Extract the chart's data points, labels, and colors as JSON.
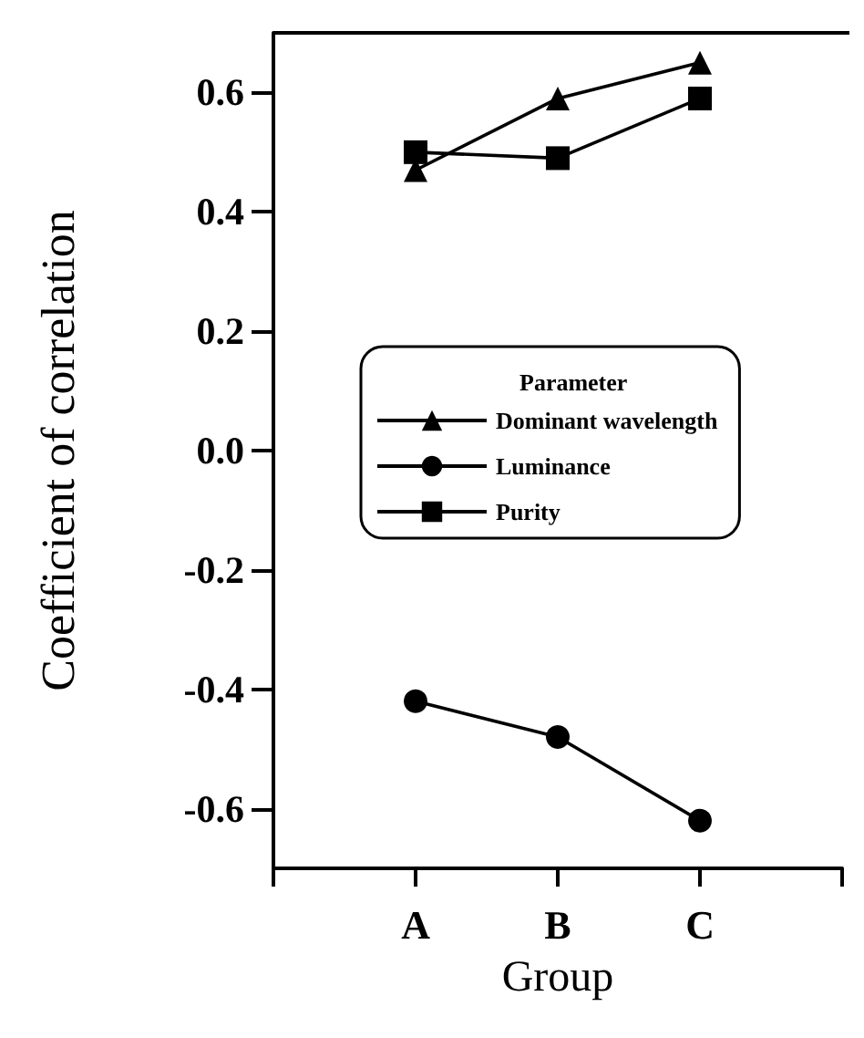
{
  "chart_data": {
    "type": "line",
    "xlabel": "Group",
    "ylabel": "Coefficient of correlation",
    "legend_title": "Parameter",
    "legend": "center",
    "grid": false,
    "categories": [
      "A",
      "B",
      "C"
    ],
    "ylim": [
      -0.7,
      0.7
    ],
    "yticks": [
      -0.6,
      -0.4,
      -0.2,
      {
        "value": 0,
        "label": "0.0"
      },
      0.2,
      0.4,
      0.6
    ],
    "series": [
      {
        "name": "Dominant wavelength",
        "color": "#000000",
        "marker": "triangle",
        "values": [
          0.47,
          0.59,
          0.65
        ]
      },
      {
        "name": "Luminance",
        "color": "#000000",
        "marker": "circle",
        "values": [
          -0.42,
          -0.48,
          -0.62
        ]
      },
      {
        "name": "Purity",
        "color": "#000000",
        "marker": "square",
        "values": [
          0.5,
          0.49,
          0.59
        ]
      }
    ]
  }
}
